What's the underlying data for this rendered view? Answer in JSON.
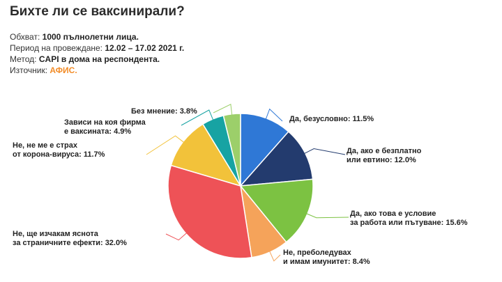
{
  "header": {
    "title": "Бихте ли се ваксинирали?"
  },
  "meta": [
    {
      "label": "Обхват:",
      "value": "1000 пълнолетни лица."
    },
    {
      "label": "Период на провеждане:",
      "value": "12.02 – 17.02 2021 г."
    },
    {
      "label": "Метод:",
      "value": "CAPI в дома на респондента."
    },
    {
      "label": "Източник:",
      "value": "АФИС."
    }
  ],
  "colors": {
    "source_accent": "#f28c28"
  },
  "chart_data": {
    "type": "pie",
    "title": "Бихте ли се ваксинирали?",
    "slices": [
      {
        "label_lines": [
          "Да, безусловно: 11.5%"
        ],
        "value": 11.5,
        "color": "#2f78d6"
      },
      {
        "label_lines": [
          "Да, ако е безплатно",
          "или евтино: 12.0%"
        ],
        "value": 12.0,
        "color": "#233b6e"
      },
      {
        "label_lines": [
          "Да, ако това е условие",
          "за работа или пътуване: 15.6%"
        ],
        "value": 15.6,
        "color": "#7cc242"
      },
      {
        "label_lines": [
          "Не, преболедувах",
          "и имам имунитет: 8.4%"
        ],
        "value": 8.4,
        "color": "#f5a35a"
      },
      {
        "label_lines": [
          "Не, ще изчакам яснота",
          "за страничните ефекти: 32.0%"
        ],
        "value": 32.0,
        "color": "#ee5257"
      },
      {
        "label_lines": [
          "Не, не ме е страх",
          "от корона-вируса: 11.7%"
        ],
        "value": 11.7,
        "color": "#f2c23a"
      },
      {
        "label_lines": [
          "Зависи на коя фирма",
          "е ваксината: 4.9%"
        ],
        "value": 4.9,
        "color": "#17a3a3"
      },
      {
        "label_lines": [
          "Без мнение: 3.8%"
        ],
        "value": 3.8,
        "color": "#9ccf6a"
      }
    ]
  }
}
